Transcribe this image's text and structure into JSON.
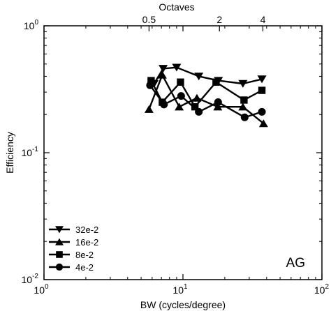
{
  "chart_data": {
    "type": "line",
    "x_scale": "log",
    "y_scale": "log",
    "xlim": [
      1,
      100
    ],
    "ylim": [
      0.01,
      1
    ],
    "x_ticks": [
      {
        "value": 1,
        "base": "10",
        "exp": "0"
      },
      {
        "value": 10,
        "base": "10",
        "exp": "1"
      },
      {
        "value": 100,
        "base": "10",
        "exp": "2"
      }
    ],
    "y_ticks": [
      {
        "value": 1,
        "base": "10",
        "exp": "0"
      },
      {
        "value": 0.1,
        "base": "10",
        "exp": "-1"
      },
      {
        "value": 0.01,
        "base": "10",
        "exp": "-2"
      }
    ],
    "xlabel": "BW (cycles/degree)",
    "ylabel": "Efficiency",
    "top_axis": {
      "label": "Octaves",
      "ticks": [
        {
          "label": "0.5",
          "x": 5.7
        },
        {
          "label": "2",
          "x": 18.3
        },
        {
          "label": "4",
          "x": 37.6
        }
      ]
    },
    "annotation": "AG",
    "legend_position": "bottom-left",
    "grid": false,
    "series": [
      {
        "name": "32e-2",
        "marker": "triangle-down",
        "x": [
          6.2,
          7.2,
          9.0,
          13.0,
          18.0,
          27.0,
          37.0
        ],
        "y": [
          0.35,
          0.46,
          0.47,
          0.4,
          0.37,
          0.35,
          0.38
        ]
      },
      {
        "name": "16e-2",
        "marker": "triangle-up",
        "x": [
          5.7,
          7.1,
          9.4,
          12.6,
          17.8,
          27.0,
          38.0
        ],
        "y": [
          0.22,
          0.41,
          0.23,
          0.27,
          0.23,
          0.23,
          0.17
        ]
      },
      {
        "name": "8e-2",
        "marker": "square",
        "x": [
          5.9,
          7.1,
          9.6,
          12.2,
          17.3,
          27.5,
          37.0
        ],
        "y": [
          0.37,
          0.25,
          0.36,
          0.23,
          0.36,
          0.26,
          0.31
        ]
      },
      {
        "name": "4e-2",
        "marker": "circle",
        "x": [
          5.8,
          7.3,
          9.7,
          13.0,
          17.9,
          27.8,
          37.0
        ],
        "y": [
          0.34,
          0.24,
          0.28,
          0.21,
          0.25,
          0.19,
          0.21
        ]
      }
    ]
  }
}
